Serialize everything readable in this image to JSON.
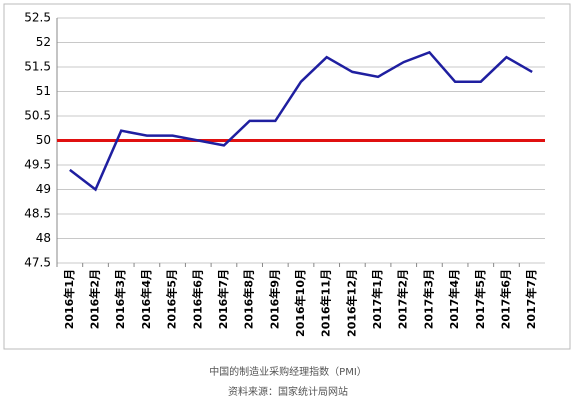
{
  "chart_data": {
    "type": "line",
    "categories": [
      "2016年1月",
      "2016年2月",
      "2016年3月",
      "2016年4月",
      "2016年5月",
      "2016年6月",
      "2016年7月",
      "2016年8月",
      "2016年9月",
      "2016年10月",
      "2016年11月",
      "2016年12月",
      "2017年1月",
      "2017年2月",
      "2017年3月",
      "2017年4月",
      "2017年5月",
      "2017年6月",
      "2017年7月"
    ],
    "series": [
      {
        "color": "#1f1fa0",
        "values": [
          49.4,
          49.0,
          50.2,
          50.1,
          50.1,
          50.0,
          49.9,
          50.4,
          50.4,
          51.2,
          51.7,
          51.4,
          51.3,
          51.6,
          51.8,
          51.2,
          51.2,
          51.7,
          51.4
        ]
      }
    ],
    "ylim": [
      47.5,
      52.5
    ],
    "yticks": [
      47.5,
      48,
      48.5,
      49,
      49.5,
      50,
      50.5,
      51,
      51.5,
      52,
      52.5
    ],
    "grid": true,
    "reference_line": {
      "value": 50,
      "color": "#e01010"
    },
    "caption": [
      "中国的制造业采购经理指数（PMI）",
      "资料来源：国家统计局网站"
    ]
  }
}
